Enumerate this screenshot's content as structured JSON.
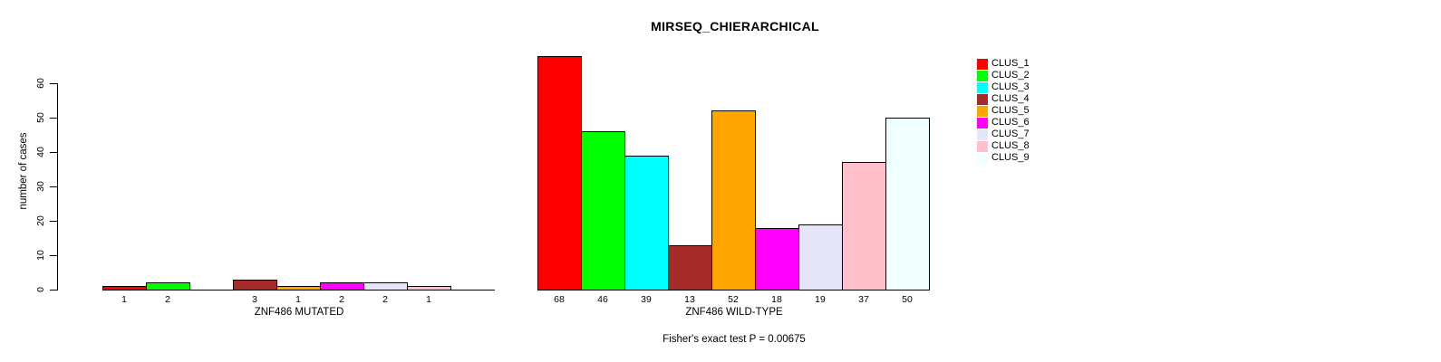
{
  "title": "MIRSEQ_CHIERARCHICAL",
  "y_axis": {
    "label": "number of cases",
    "ticks": [
      0,
      10,
      20,
      30,
      40,
      50,
      60
    ]
  },
  "legend": {
    "items": [
      {
        "label": "CLUS_1",
        "color": "#FF0000"
      },
      {
        "label": "CLUS_2",
        "color": "#00FF00"
      },
      {
        "label": "CLUS_3",
        "color": "#00FFFF"
      },
      {
        "label": "CLUS_4",
        "color": "#A52A2A"
      },
      {
        "label": "CLUS_5",
        "color": "#FFA500"
      },
      {
        "label": "CLUS_6",
        "color": "#FF00FF"
      },
      {
        "label": "CLUS_7",
        "color": "#E6E6FA"
      },
      {
        "label": "CLUS_8",
        "color": "#FFC0CB"
      },
      {
        "label": "CLUS_9",
        "color": "#F0FFFF"
      }
    ]
  },
  "panels": [
    {
      "xlabel": "ZNF486 MUTATED",
      "values": [
        1,
        2,
        0,
        3,
        1,
        2,
        2,
        1,
        0
      ],
      "labels": [
        "1",
        "2",
        "",
        "3",
        "1",
        "2",
        "2",
        "1",
        ""
      ]
    },
    {
      "xlabel": "ZNF486 WILD-TYPE",
      "values": [
        68,
        46,
        39,
        13,
        52,
        18,
        19,
        37,
        50
      ],
      "labels": [
        "68",
        "46",
        "39",
        "13",
        "52",
        "18",
        "19",
        "37",
        "50"
      ]
    }
  ],
  "footer": "Fisher's exact test P = 0.00675",
  "colors": {
    "background": "#FFFFFF",
    "bar_border": "#000000",
    "axis": "#000000",
    "text": "#000000"
  },
  "chart_data": [
    {
      "type": "bar",
      "title": "MIRSEQ_CHIERARCHICAL",
      "categories": [
        "CLUS_1",
        "CLUS_2",
        "CLUS_3",
        "CLUS_4",
        "CLUS_5",
        "CLUS_6",
        "CLUS_7",
        "CLUS_8",
        "CLUS_9"
      ],
      "values": [
        1,
        2,
        0,
        3,
        1,
        2,
        2,
        1,
        0
      ],
      "xlabel": "ZNF486 MUTATED",
      "ylabel": "number of cases",
      "ylim": [
        0,
        68
      ],
      "yticks": [
        0,
        10,
        20,
        30,
        40,
        50,
        60
      ],
      "bar_colors": [
        "#FF0000",
        "#00FF00",
        "#00FFFF",
        "#A52A2A",
        "#FFA500",
        "#FF00FF",
        "#E6E6FA",
        "#FFC0CB",
        "#F0FFFF"
      ],
      "grid": false,
      "legend_position": "top-right",
      "annotation": "Fisher's exact test P = 0.00675"
    },
    {
      "type": "bar",
      "title": "MIRSEQ_CHIERARCHICAL",
      "categories": [
        "CLUS_1",
        "CLUS_2",
        "CLUS_3",
        "CLUS_4",
        "CLUS_5",
        "CLUS_6",
        "CLUS_7",
        "CLUS_8",
        "CLUS_9"
      ],
      "values": [
        68,
        46,
        39,
        13,
        52,
        18,
        19,
        37,
        50
      ],
      "xlabel": "ZNF486 WILD-TYPE",
      "ylabel": "number of cases",
      "ylim": [
        0,
        68
      ],
      "yticks": [
        0,
        10,
        20,
        30,
        40,
        50,
        60
      ],
      "bar_colors": [
        "#FF0000",
        "#00FF00",
        "#00FFFF",
        "#A52A2A",
        "#FFA500",
        "#FF00FF",
        "#E6E6FA",
        "#FFC0CB",
        "#F0FFFF"
      ],
      "grid": false,
      "legend_position": "top-right",
      "annotation": "Fisher's exact test P = 0.00675"
    }
  ]
}
